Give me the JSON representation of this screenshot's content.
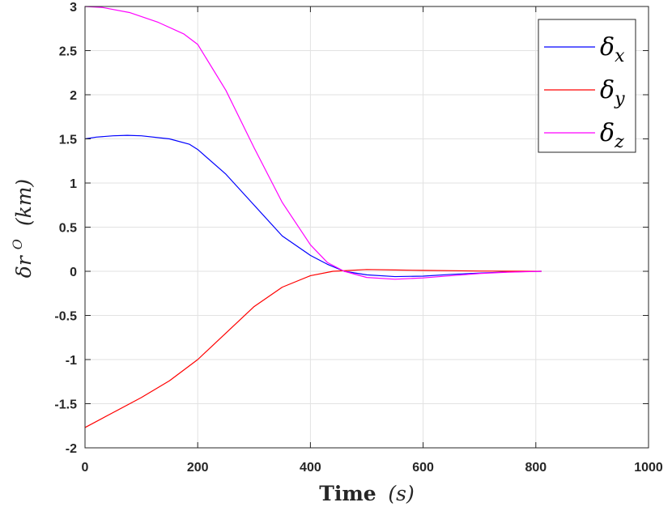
{
  "chart_data": {
    "type": "line",
    "xlabel": {
      "main": "Time",
      "unit": "(s)"
    },
    "ylabel": {
      "main": "δr",
      "sup": "O",
      "unit": "(km)"
    },
    "xlim": [
      0,
      1000
    ],
    "ylim": [
      -2,
      3
    ],
    "xticks": [
      0,
      200,
      400,
      600,
      800,
      1000
    ],
    "yticks": [
      -2,
      -1.5,
      -1,
      -0.5,
      0,
      0.5,
      1,
      1.5,
      2,
      2.5,
      3
    ],
    "grid": true,
    "legend_position": "top-right",
    "series": [
      {
        "name": "δ",
        "subscript": "x",
        "color": "#0000ff",
        "points": [
          [
            0,
            1.5
          ],
          [
            20,
            1.52
          ],
          [
            50,
            1.535
          ],
          [
            75,
            1.54
          ],
          [
            100,
            1.535
          ],
          [
            150,
            1.5
          ],
          [
            185,
            1.44
          ],
          [
            200,
            1.38
          ],
          [
            250,
            1.1
          ],
          [
            300,
            0.75
          ],
          [
            350,
            0.4
          ],
          [
            400,
            0.18
          ],
          [
            430,
            0.08
          ],
          [
            460,
            0.0
          ],
          [
            500,
            -0.04
          ],
          [
            550,
            -0.06
          ],
          [
            600,
            -0.055
          ],
          [
            650,
            -0.035
          ],
          [
            700,
            -0.02
          ],
          [
            750,
            -0.008
          ],
          [
            810,
            0.0
          ]
        ]
      },
      {
        "name": "δ",
        "subscript": "y",
        "color": "#ff0000",
        "points": [
          [
            0,
            -1.77
          ],
          [
            50,
            -1.6
          ],
          [
            100,
            -1.43
          ],
          [
            150,
            -1.24
          ],
          [
            200,
            -1.0
          ],
          [
            250,
            -0.7
          ],
          [
            300,
            -0.4
          ],
          [
            350,
            -0.18
          ],
          [
            400,
            -0.05
          ],
          [
            440,
            0.0
          ],
          [
            500,
            0.02
          ],
          [
            550,
            0.015
          ],
          [
            600,
            0.01
          ],
          [
            700,
            0.003
          ],
          [
            810,
            0.0
          ]
        ]
      },
      {
        "name": "δ",
        "subscript": "z",
        "color": "#ff00ff",
        "points": [
          [
            0,
            3.0
          ],
          [
            30,
            2.99
          ],
          [
            80,
            2.93
          ],
          [
            130,
            2.82
          ],
          [
            175,
            2.69
          ],
          [
            200,
            2.57
          ],
          [
            250,
            2.05
          ],
          [
            300,
            1.4
          ],
          [
            350,
            0.78
          ],
          [
            400,
            0.3
          ],
          [
            430,
            0.1
          ],
          [
            460,
            0.0
          ],
          [
            500,
            -0.07
          ],
          [
            550,
            -0.09
          ],
          [
            600,
            -0.075
          ],
          [
            650,
            -0.05
          ],
          [
            700,
            -0.025
          ],
          [
            750,
            -0.01
          ],
          [
            810,
            0.0
          ]
        ]
      }
    ]
  }
}
